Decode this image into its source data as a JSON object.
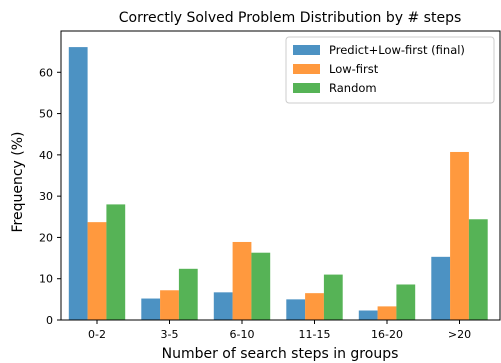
{
  "chart_data": {
    "type": "bar",
    "title": "Correctly Solved Problem Distribution by # steps",
    "xlabel": "Number of search steps in groups",
    "ylabel": "Frequency (%)",
    "categories": [
      "0-2",
      "3-5",
      "6-10",
      "11-15",
      "16-20",
      ">20"
    ],
    "ylim": [
      0,
      70
    ],
    "yticks": [
      0,
      10,
      20,
      30,
      40,
      50,
      60
    ],
    "grid": false,
    "legend_position": "top-right",
    "series": [
      {
        "name": "Predict+Low-first (final)",
        "color": "#1f77b4",
        "values": [
          66.1,
          5.2,
          6.7,
          5.0,
          2.3,
          15.3
        ]
      },
      {
        "name": "Low-first",
        "color": "#ff7f0e",
        "values": [
          23.7,
          7.2,
          18.9,
          6.5,
          3.3,
          40.7
        ]
      },
      {
        "name": "Random",
        "color": "#2ca02c",
        "values": [
          28.0,
          12.4,
          16.3,
          11.0,
          8.6,
          24.4
        ]
      }
    ]
  }
}
